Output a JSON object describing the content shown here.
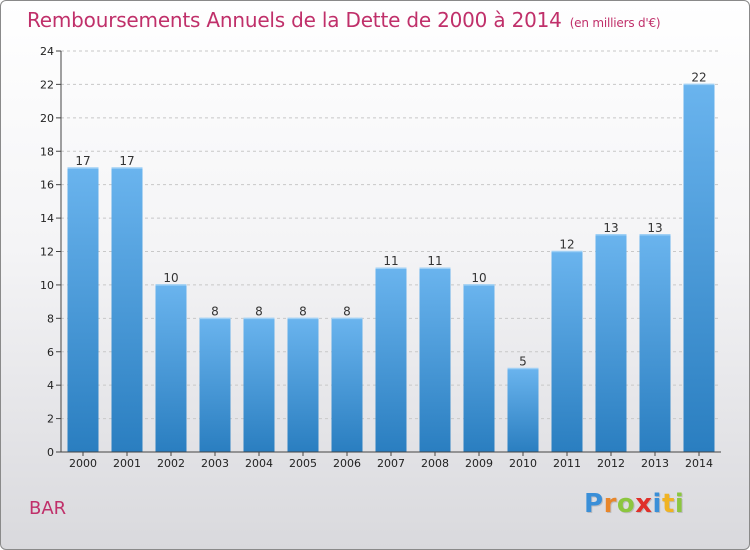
{
  "header": {
    "title": "Remboursements Annuels de la Dette de 2000 à 2014",
    "unit": "(en milliers d'€)"
  },
  "footer": {
    "commune": "BAR",
    "logo_letters": [
      "P",
      "r",
      "o",
      "x",
      "i",
      "t",
      "i"
    ],
    "logo_colors": [
      "#3a8fd8",
      "#e8862a",
      "#8cc63f",
      "#e0302a",
      "#3a8fd8",
      "#f0b323",
      "#8cc63f"
    ]
  },
  "colors": {
    "bar_top": "#6ab4ee",
    "bar_bottom": "#2a7ec0",
    "grid": "#c8c8c8",
    "axis": "#444444"
  },
  "chart_data": {
    "type": "bar",
    "title": "Remboursements Annuels de la Dette de 2000 à 2014",
    "subtitle": "(en milliers d'€)",
    "xlabel": "",
    "ylabel": "",
    "categories": [
      "2000",
      "2001",
      "2002",
      "2003",
      "2004",
      "2005",
      "2006",
      "2007",
      "2008",
      "2009",
      "2010",
      "2011",
      "2012",
      "2013",
      "2014"
    ],
    "values": [
      17,
      17,
      10,
      8,
      8,
      8,
      8,
      11,
      11,
      10,
      5,
      12,
      13,
      13,
      22
    ],
    "ylim": [
      0,
      24
    ],
    "yticks": [
      0,
      2,
      4,
      6,
      8,
      10,
      12,
      14,
      16,
      18,
      20,
      22,
      24
    ],
    "grid": true,
    "legend": "none"
  }
}
